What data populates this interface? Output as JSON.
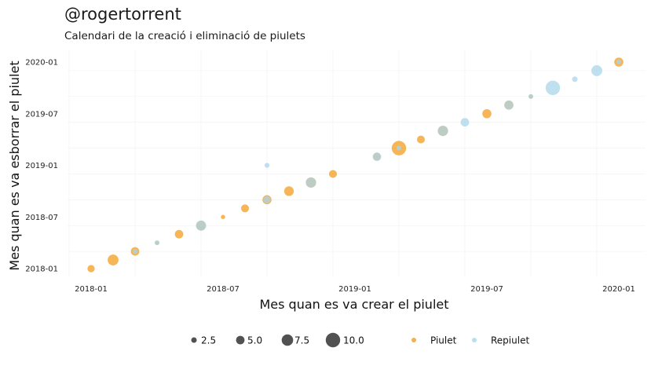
{
  "header": {
    "title": "@rogertorrent",
    "subtitle": "Calendari de la creació i eliminació de piulets"
  },
  "colors": {
    "piulet": "#f39c1f",
    "repiulet": "#a9d6ea",
    "size_legend": "#333333",
    "grid": "#e3e3e3"
  },
  "legend": {
    "size_labels": [
      "2.5",
      "5.0",
      "7.5",
      "10.0"
    ],
    "size_values": [
      2.5,
      5.0,
      7.5,
      10.0
    ],
    "piulet_label": "Piulet",
    "repiulet_label": "Repiulet"
  },
  "chart_data": {
    "type": "scatter",
    "xlabel": "Mes quan es va crear el piulet",
    "ylabel": "Mes quan es va esborrar el piulet",
    "x_ticks": [
      "2018-01",
      "2018-07",
      "2019-01",
      "2019-07",
      "2020-01"
    ],
    "y_ticks": [
      "2018-01",
      "2018-07",
      "2019-01",
      "2019-07",
      "2020-01"
    ],
    "xlim": [
      "2017-12",
      "2020-02"
    ],
    "ylim": [
      "2017-12",
      "2020-02"
    ],
    "grid": true,
    "legend_position": "bottom",
    "series": [
      {
        "name": "Piulet",
        "color": "#f39c1f",
        "points": [
          {
            "x": "2018-01",
            "y": "2018-01",
            "size": 4
          },
          {
            "x": "2018-02",
            "y": "2018-02",
            "size": 7
          },
          {
            "x": "2018-03",
            "y": "2018-03",
            "size": 5
          },
          {
            "x": "2018-04",
            "y": "2018-04",
            "size": 1.5
          },
          {
            "x": "2018-05",
            "y": "2018-05",
            "size": 5
          },
          {
            "x": "2018-06",
            "y": "2018-06",
            "size": 6
          },
          {
            "x": "2018-07",
            "y": "2018-07",
            "size": 1.5
          },
          {
            "x": "2018-08",
            "y": "2018-08",
            "size": 4.5
          },
          {
            "x": "2018-09",
            "y": "2018-09",
            "size": 5.5
          },
          {
            "x": "2018-10",
            "y": "2018-10",
            "size": 6
          },
          {
            "x": "2018-11",
            "y": "2018-11",
            "size": 6.5
          },
          {
            "x": "2018-12",
            "y": "2018-12",
            "size": 4.5
          },
          {
            "x": "2019-02",
            "y": "2019-02",
            "size": 4.5
          },
          {
            "x": "2019-03",
            "y": "2019-03",
            "size": 10
          },
          {
            "x": "2019-04",
            "y": "2019-04",
            "size": 4.5
          },
          {
            "x": "2019-05",
            "y": "2019-05",
            "size": 6.5
          },
          {
            "x": "2019-07",
            "y": "2019-07",
            "size": 5.5
          },
          {
            "x": "2019-08",
            "y": "2019-08",
            "size": 5.5
          },
          {
            "x": "2019-09",
            "y": "2019-09",
            "size": 1.5
          },
          {
            "x": "2020-01",
            "y": "2020-01",
            "size": 5.5
          }
        ]
      },
      {
        "name": "Repiulet",
        "color": "#a9d6ea",
        "points": [
          {
            "x": "2018-03",
            "y": "2018-03",
            "size": 2
          },
          {
            "x": "2018-04",
            "y": "2018-04",
            "size": 2
          },
          {
            "x": "2018-06",
            "y": "2018-06",
            "size": 6.5
          },
          {
            "x": "2018-09",
            "y": "2018-09",
            "size": 4
          },
          {
            "x": "2018-09",
            "y": "2019-01",
            "size": 2
          },
          {
            "x": "2018-11",
            "y": "2018-11",
            "size": 6.5
          },
          {
            "x": "2019-02",
            "y": "2019-02",
            "size": 5
          },
          {
            "x": "2019-03",
            "y": "2019-03",
            "size": 2
          },
          {
            "x": "2019-05",
            "y": "2019-05",
            "size": 6.5
          },
          {
            "x": "2019-06",
            "y": "2019-06",
            "size": 5
          },
          {
            "x": "2019-08",
            "y": "2019-08",
            "size": 5.5
          },
          {
            "x": "2019-09",
            "y": "2019-09",
            "size": 2
          },
          {
            "x": "2019-10",
            "y": "2019-10",
            "size": 10
          },
          {
            "x": "2019-11",
            "y": "2019-11",
            "size": 2.5
          },
          {
            "x": "2019-12",
            "y": "2019-12",
            "size": 7
          },
          {
            "x": "2020-01",
            "y": "2020-01",
            "size": 2
          }
        ]
      }
    ]
  }
}
